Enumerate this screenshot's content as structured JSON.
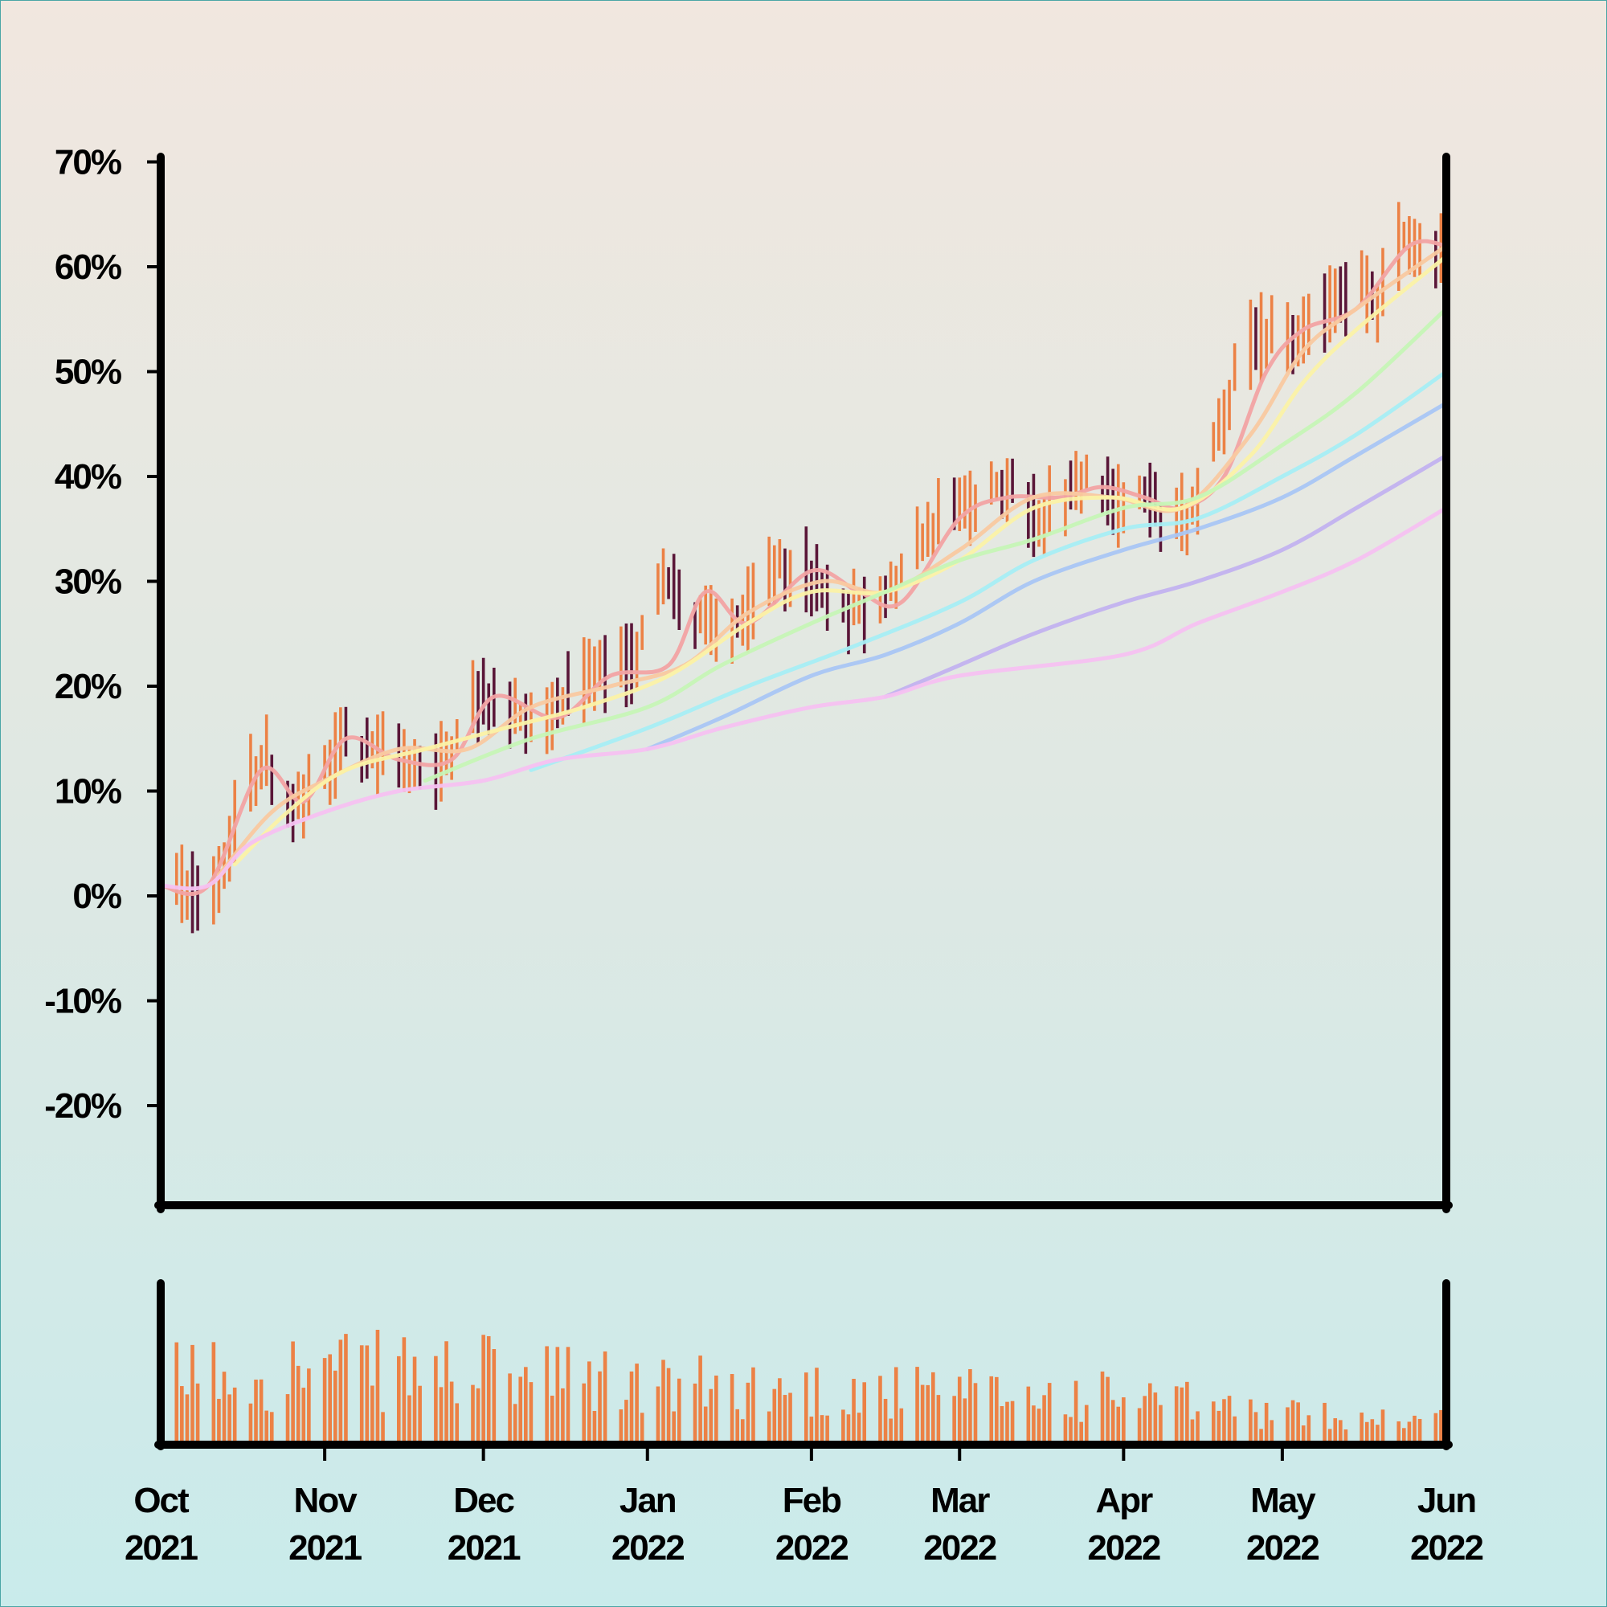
{
  "chart_data": {
    "type": "ohlc",
    "y_axis": {
      "ticks": [
        70,
        60,
        50,
        40,
        30,
        20,
        10,
        0,
        -10,
        -20
      ],
      "tick_labels": [
        "70%",
        "60%",
        "50%",
        "40%",
        "30%",
        "20%",
        "10%",
        "0%",
        "-10%",
        "-20%"
      ],
      "range": [
        -29.5,
        70.5
      ],
      "unit": "%"
    },
    "x_axis": {
      "range": [
        "2021-10-01",
        "2022-06-01"
      ],
      "ticks": [
        {
          "date": "2021-10-01",
          "month": "Oct",
          "year": "2021"
        },
        {
          "date": "2021-11-01",
          "month": "Nov",
          "year": "2021"
        },
        {
          "date": "2021-12-01",
          "month": "Dec",
          "year": "2021"
        },
        {
          "date": "2022-01-01",
          "month": "Jan",
          "year": "2022"
        },
        {
          "date": "2022-02-01",
          "month": "Feb",
          "year": "2022"
        },
        {
          "date": "2022-03-01",
          "month": "Mar",
          "year": "2022"
        },
        {
          "date": "2022-04-01",
          "month": "Apr",
          "year": "2022"
        },
        {
          "date": "2022-05-01",
          "month": "May",
          "year": "2022"
        },
        {
          "date": "2022-06-01",
          "month": "Jun",
          "year": "2022"
        }
      ]
    },
    "price_trend": {
      "description": "daily close, % change from start",
      "points": [
        [
          "2021-10-01",
          0
        ],
        [
          "2021-10-05",
          1
        ],
        [
          "2021-10-09",
          0
        ],
        [
          "2021-10-13",
          3
        ],
        [
          "2021-10-17",
          11
        ],
        [
          "2021-10-21",
          13
        ],
        [
          "2021-10-26",
          8
        ],
        [
          "2021-10-31",
          10
        ],
        [
          "2021-11-04",
          15
        ],
        [
          "2021-11-09",
          13
        ],
        [
          "2021-11-14",
          14
        ],
        [
          "2021-11-19",
          12
        ],
        [
          "2021-11-24",
          13
        ],
        [
          "2021-11-29",
          19
        ],
        [
          "2021-12-04",
          18
        ],
        [
          "2021-12-09",
          17
        ],
        [
          "2021-12-14",
          18
        ],
        [
          "2021-12-19",
          20
        ],
        [
          "2021-12-24",
          21
        ],
        [
          "2021-12-29",
          22
        ],
        [
          "2022-01-04",
          31
        ],
        [
          "2022-01-09",
          27
        ],
        [
          "2022-01-14",
          25
        ],
        [
          "2022-01-19",
          26
        ],
        [
          "2022-01-24",
          31
        ],
        [
          "2022-01-29",
          32
        ],
        [
          "2022-02-03",
          29
        ],
        [
          "2022-02-08",
          27
        ],
        [
          "2022-02-13",
          27
        ],
        [
          "2022-02-18",
          31
        ],
        [
          "2022-02-23",
          35
        ],
        [
          "2022-02-28",
          37
        ],
        [
          "2022-03-05",
          38
        ],
        [
          "2022-03-10",
          40
        ],
        [
          "2022-03-15",
          36
        ],
        [
          "2022-03-20",
          38
        ],
        [
          "2022-03-25",
          41
        ],
        [
          "2022-03-30",
          37
        ],
        [
          "2022-04-04",
          39
        ],
        [
          "2022-04-09",
          35
        ],
        [
          "2022-04-14",
          37
        ],
        [
          "2022-04-19",
          45
        ],
        [
          "2022-04-24",
          52
        ],
        [
          "2022-04-29",
          54
        ],
        [
          "2022-05-04",
          53
        ],
        [
          "2022-05-09",
          56
        ],
        [
          "2022-05-14",
          58
        ],
        [
          "2022-05-19",
          57
        ],
        [
          "2022-05-24",
          63
        ],
        [
          "2022-05-29",
          62
        ],
        [
          "2022-06-01",
          63
        ]
      ]
    },
    "moving_averages": [
      {
        "color": "#f2a3a3",
        "points": [
          [
            "2021-10-01",
            1
          ],
          [
            "2021-10-10",
            1
          ],
          [
            "2021-10-20",
            12
          ],
          [
            "2021-10-28",
            9
          ],
          [
            "2021-11-05",
            15
          ],
          [
            "2021-11-15",
            13
          ],
          [
            "2021-11-25",
            13
          ],
          [
            "2021-12-03",
            19
          ],
          [
            "2021-12-15",
            17
          ],
          [
            "2021-12-25",
            21
          ],
          [
            "2022-01-05",
            22
          ],
          [
            "2022-01-12",
            29
          ],
          [
            "2022-01-20",
            26
          ],
          [
            "2022-02-01",
            31
          ],
          [
            "2022-02-10",
            29
          ],
          [
            "2022-02-18",
            28
          ],
          [
            "2022-03-01",
            36
          ],
          [
            "2022-03-10",
            38
          ],
          [
            "2022-03-20",
            38
          ],
          [
            "2022-03-28",
            39
          ],
          [
            "2022-04-05",
            38
          ],
          [
            "2022-04-12",
            37
          ],
          [
            "2022-04-20",
            40
          ],
          [
            "2022-04-28",
            50
          ],
          [
            "2022-05-05",
            54
          ],
          [
            "2022-05-15",
            56
          ],
          [
            "2022-05-25",
            62
          ],
          [
            "2022-06-01",
            62
          ]
        ]
      },
      {
        "color": "#f9c9a0",
        "points": [
          [
            "2021-10-12",
            2
          ],
          [
            "2021-10-22",
            8
          ],
          [
            "2021-11-01",
            11
          ],
          [
            "2021-11-15",
            14
          ],
          [
            "2021-11-28",
            14
          ],
          [
            "2021-12-10",
            18
          ],
          [
            "2021-12-25",
            20
          ],
          [
            "2022-01-08",
            22
          ],
          [
            "2022-01-20",
            27
          ],
          [
            "2022-02-03",
            30
          ],
          [
            "2022-02-15",
            29
          ],
          [
            "2022-03-01",
            33
          ],
          [
            "2022-03-15",
            38
          ],
          [
            "2022-03-30",
            38
          ],
          [
            "2022-04-12",
            37
          ],
          [
            "2022-04-25",
            44
          ],
          [
            "2022-05-05",
            52
          ],
          [
            "2022-05-15",
            56
          ],
          [
            "2022-06-01",
            62
          ]
        ]
      },
      {
        "color": "#fbf2a6",
        "points": [
          [
            "2021-10-15",
            3
          ],
          [
            "2021-10-25",
            8
          ],
          [
            "2021-11-05",
            12
          ],
          [
            "2021-11-20",
            14
          ],
          [
            "2021-12-05",
            16
          ],
          [
            "2021-12-20",
            18
          ],
          [
            "2022-01-05",
            21
          ],
          [
            "2022-01-20",
            26
          ],
          [
            "2022-02-01",
            29
          ],
          [
            "2022-02-15",
            29
          ],
          [
            "2022-03-01",
            32
          ],
          [
            "2022-03-15",
            37
          ],
          [
            "2022-03-30",
            38
          ],
          [
            "2022-04-12",
            37
          ],
          [
            "2022-04-25",
            42
          ],
          [
            "2022-05-05",
            49
          ],
          [
            "2022-05-15",
            54
          ],
          [
            "2022-06-01",
            61
          ]
        ]
      },
      {
        "color": "#c6f5b6",
        "points": [
          [
            "2021-11-20",
            11
          ],
          [
            "2021-12-10",
            15
          ],
          [
            "2022-01-01",
            18
          ],
          [
            "2022-01-15",
            22
          ],
          [
            "2022-02-01",
            26
          ],
          [
            "2022-02-15",
            29
          ],
          [
            "2022-03-01",
            32
          ],
          [
            "2022-03-15",
            34
          ],
          [
            "2022-04-01",
            37
          ],
          [
            "2022-04-15",
            38
          ],
          [
            "2022-05-01",
            43
          ],
          [
            "2022-05-15",
            48
          ],
          [
            "2022-06-01",
            56
          ]
        ]
      },
      {
        "color": "#a7eef4",
        "points": [
          [
            "2021-12-10",
            12
          ],
          [
            "2022-01-01",
            16
          ],
          [
            "2022-01-20",
            20
          ],
          [
            "2022-02-10",
            24
          ],
          [
            "2022-03-01",
            28
          ],
          [
            "2022-03-15",
            32
          ],
          [
            "2022-04-01",
            35
          ],
          [
            "2022-04-15",
            36
          ],
          [
            "2022-05-01",
            40
          ],
          [
            "2022-05-15",
            44
          ],
          [
            "2022-06-01",
            50
          ]
        ]
      },
      {
        "color": "#a9c6f4",
        "points": [
          [
            "2022-01-01",
            14
          ],
          [
            "2022-01-15",
            17
          ],
          [
            "2022-02-01",
            21
          ],
          [
            "2022-02-15",
            23
          ],
          [
            "2022-03-01",
            26
          ],
          [
            "2022-03-15",
            30
          ],
          [
            "2022-04-01",
            33
          ],
          [
            "2022-04-15",
            35
          ],
          [
            "2022-05-01",
            38
          ],
          [
            "2022-05-15",
            42
          ],
          [
            "2022-06-01",
            47
          ]
        ]
      },
      {
        "color": "#c2b2ef",
        "points": [
          [
            "2022-02-15",
            19
          ],
          [
            "2022-03-01",
            22
          ],
          [
            "2022-03-15",
            25
          ],
          [
            "2022-04-01",
            28
          ],
          [
            "2022-04-15",
            30
          ],
          [
            "2022-05-01",
            33
          ],
          [
            "2022-05-15",
            37
          ],
          [
            "2022-06-01",
            42
          ]
        ]
      },
      {
        "color": "#f5c1f1",
        "points": [
          [
            "2021-10-01",
            1
          ],
          [
            "2021-10-10",
            1
          ],
          [
            "2021-10-18",
            5
          ],
          [
            "2021-11-01",
            8
          ],
          [
            "2021-11-15",
            10
          ],
          [
            "2021-12-01",
            11
          ],
          [
            "2021-12-15",
            13
          ],
          [
            "2022-01-01",
            14
          ],
          [
            "2022-01-15",
            16
          ],
          [
            "2022-02-01",
            18
          ],
          [
            "2022-02-15",
            19
          ],
          [
            "2022-03-01",
            21
          ],
          [
            "2022-04-01",
            23
          ],
          [
            "2022-04-15",
            26
          ],
          [
            "2022-05-01",
            29
          ],
          [
            "2022-05-15",
            32
          ],
          [
            "2022-06-01",
            37
          ]
        ]
      }
    ],
    "volume_trend": {
      "range": [
        0,
        1
      ],
      "points": [
        [
          "2021-10-01",
          0.55
        ],
        [
          "2021-11-01",
          0.58
        ],
        [
          "2021-12-01",
          0.55
        ],
        [
          "2022-01-01",
          0.45
        ],
        [
          "2022-02-01",
          0.42
        ],
        [
          "2022-03-01",
          0.38
        ],
        [
          "2022-04-01",
          0.36
        ],
        [
          "2022-05-01",
          0.22
        ],
        [
          "2022-06-01",
          0.18
        ]
      ]
    },
    "colors": {
      "up": "#ec8145",
      "down": "#5a1638",
      "volume": "#ec8145",
      "axis": "#000000"
    }
  }
}
